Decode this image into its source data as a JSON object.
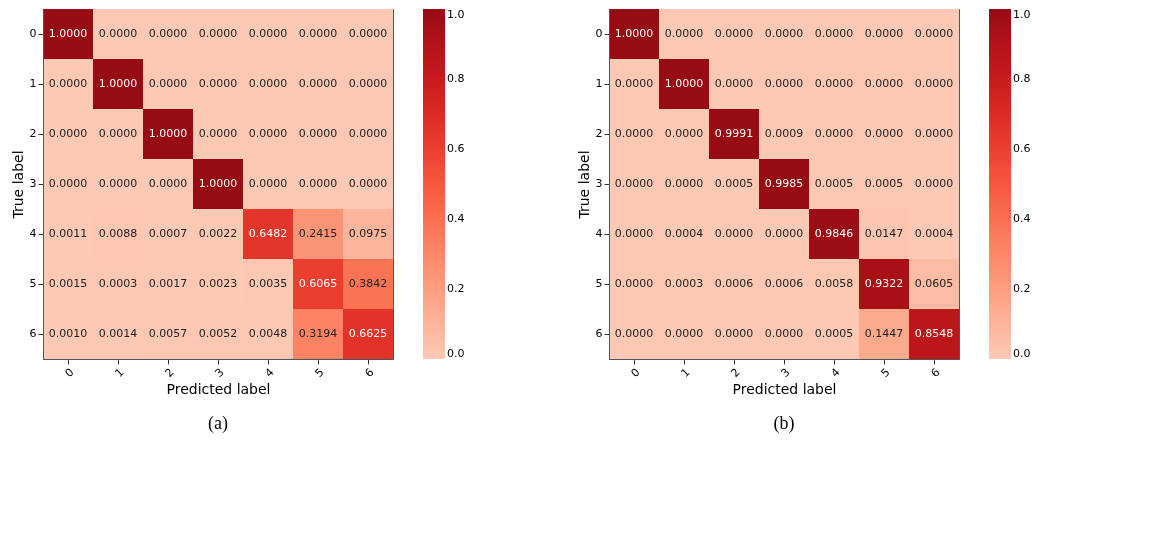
{
  "chart_data": [
    {
      "type": "heatmap",
      "xlabel": "Predicted label",
      "ylabel": "True label",
      "annotations": [
        "(a)"
      ],
      "categories": [
        "0",
        "1",
        "2",
        "3",
        "4",
        "5",
        "6"
      ],
      "y_categories": [
        "0",
        "1",
        "2",
        "3",
        "4",
        "5",
        "6"
      ],
      "cells": [
        [
          1.0,
          0,
          0,
          0,
          0,
          0,
          0
        ],
        [
          0,
          1.0,
          0,
          0,
          0,
          0,
          0
        ],
        [
          0,
          0,
          1.0,
          0,
          0,
          0,
          0
        ],
        [
          0,
          0,
          0,
          1.0,
          0,
          0,
          0
        ],
        [
          0.0011,
          0.0088,
          0.0007,
          0.0022,
          0.6482,
          0.2415,
          0.0975
        ],
        [
          0.0015,
          0.0003,
          0.0017,
          0.0023,
          0.0035,
          0.6065,
          0.3842
        ],
        [
          0.001,
          0.0014,
          0.0057,
          0.0052,
          0.0048,
          0.3194,
          0.6625
        ]
      ],
      "cell_labels": [
        [
          "1.0000",
          "0.0000",
          "0.0000",
          "0.0000",
          "0.0000",
          "0.0000",
          "0.0000"
        ],
        [
          "0.0000",
          "1.0000",
          "0.0000",
          "0.0000",
          "0.0000",
          "0.0000",
          "0.0000"
        ],
        [
          "0.0000",
          "0.0000",
          "1.0000",
          "0.0000",
          "0.0000",
          "0.0000",
          "0.0000"
        ],
        [
          "0.0000",
          "0.0000",
          "0.0000",
          "1.0000",
          "0.0000",
          "0.0000",
          "0.0000"
        ],
        [
          "0.0011",
          "0.0088",
          "0.0007",
          "0.0022",
          "0.6482",
          "0.2415",
          "0.0975"
        ],
        [
          "0.0015",
          "0.0003",
          "0.0017",
          "0.0023",
          "0.0035",
          "0.6065",
          "0.3842"
        ],
        [
          "0.0010",
          "0.0014",
          "0.0057",
          "0.0052",
          "0.0048",
          "0.3194",
          "0.6625"
        ]
      ],
      "clim": [
        0,
        1
      ],
      "cticks": [
        {
          "value": 0,
          "label": "0.0"
        },
        {
          "value": 0.2,
          "label": "0.2"
        },
        {
          "value": 0.4,
          "label": "0.4"
        },
        {
          "value": 0.6,
          "label": "0.6"
        },
        {
          "value": 0.8,
          "label": "0.8"
        },
        {
          "value": 1,
          "label": "1.0"
        }
      ]
    },
    {
      "type": "heatmap",
      "xlabel": "Predicted label",
      "ylabel": "True label",
      "annotations": [
        "(b)"
      ],
      "categories": [
        "0",
        "1",
        "2",
        "3",
        "4",
        "5",
        "6"
      ],
      "y_categories": [
        "0",
        "1",
        "2",
        "3",
        "4",
        "5",
        "6"
      ],
      "cells": [
        [
          1.0,
          0,
          0,
          0,
          0,
          0,
          0
        ],
        [
          0,
          1.0,
          0,
          0,
          0,
          0,
          0
        ],
        [
          0,
          0,
          0.9991,
          0.0009,
          0,
          0,
          0
        ],
        [
          0,
          0,
          0.0005,
          0.9985,
          0.0005,
          0.0005,
          0
        ],
        [
          0,
          0.0004,
          0,
          0,
          0.9846,
          0.0147,
          0.0004
        ],
        [
          0,
          0.0003,
          0.0006,
          0.0006,
          0.0058,
          0.9322,
          0.0605
        ],
        [
          0,
          0,
          0,
          0,
          0.0005,
          0.1447,
          0.8548
        ]
      ],
      "cell_labels": [
        [
          "1.0000",
          "0.0000",
          "0.0000",
          "0.0000",
          "0.0000",
          "0.0000",
          "0.0000"
        ],
        [
          "0.0000",
          "1.0000",
          "0.0000",
          "0.0000",
          "0.0000",
          "0.0000",
          "0.0000"
        ],
        [
          "0.0000",
          "0.0000",
          "0.9991",
          "0.0009",
          "0.0000",
          "0.0000",
          "0.0000"
        ],
        [
          "0.0000",
          "0.0000",
          "0.0005",
          "0.9985",
          "0.0005",
          "0.0005",
          "0.0000"
        ],
        [
          "0.0000",
          "0.0004",
          "0.0000",
          "0.0000",
          "0.9846",
          "0.0147",
          "0.0004"
        ],
        [
          "0.0000",
          "0.0003",
          "0.0006",
          "0.0006",
          "0.0058",
          "0.9322",
          "0.0605"
        ],
        [
          "0.0000",
          "0.0000",
          "0.0000",
          "0.0000",
          "0.0005",
          "0.1447",
          "0.8548"
        ]
      ],
      "clim": [
        0,
        1
      ],
      "cticks": [
        {
          "value": 0,
          "label": "0.0"
        },
        {
          "value": 0.2,
          "label": "0.2"
        },
        {
          "value": 0.4,
          "label": "0.4"
        },
        {
          "value": 0.6,
          "label": "0.6"
        },
        {
          "value": 0.8,
          "label": "0.8"
        },
        {
          "value": 1,
          "label": "1.0"
        }
      ]
    }
  ]
}
